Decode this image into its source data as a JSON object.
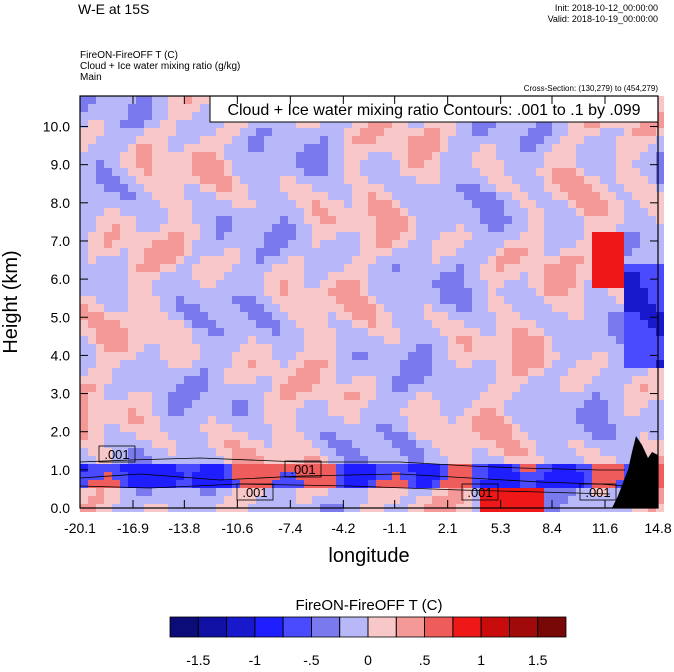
{
  "chart_data": {
    "type": "contour",
    "title": "W-E at 15S",
    "init": "Init: 2018-10-12_00:00:00",
    "valid": "Valid: 2018-10-19_00:00:00",
    "field_names": [
      "FireON-FireOFF T   (C)",
      "Cloud + Ice water mixing ratio   (g/kg)",
      "Main"
    ],
    "cross_section": "Cross-Section: (130,279) to (454,279)",
    "contour_info": "Cloud + Ice water mixing ratio Contours: .001 to .1 by .099",
    "contour_labels": [
      ".001",
      ".001",
      ".001",
      ".001",
      ".001"
    ],
    "xlabel": "longitude",
    "ylabel": "Height (km)",
    "xlim": [
      -20.1,
      14.8
    ],
    "xticks": [
      -20.1,
      -16.9,
      -13.8,
      -10.6,
      -7.4,
      -4.2,
      -1.1,
      2.1,
      5.3,
      8.4,
      11.6,
      14.8
    ],
    "ylim": [
      0,
      10.8
    ],
    "yticks": [
      {
        "value": 0,
        "label": "0.0"
      },
      {
        "value": 1,
        "label": "1.0"
      },
      {
        "value": 2,
        "label": "2.0"
      },
      {
        "value": 3,
        "label": "3.0"
      },
      {
        "value": 4,
        "label": "4.0"
      },
      {
        "value": 5,
        "label": "5.0"
      },
      {
        "value": 6,
        "label": "6.0"
      },
      {
        "value": 7,
        "label": "7.0"
      },
      {
        "value": 8,
        "label": "8.0"
      },
      {
        "value": 9,
        "label": "9.0"
      },
      {
        "value": 10,
        "label": "10.0"
      }
    ],
    "colorbar": {
      "title": "FireON-FireOFF T  (C)",
      "levels": [
        -1.5,
        -1.25,
        -1,
        -0.75,
        -0.5,
        -0.25,
        0,
        0.25,
        0.5,
        0.75,
        1,
        1.25,
        1.5
      ],
      "ticks": [
        {
          "value": -1.5,
          "label": "-1.5"
        },
        {
          "value": -1,
          "label": "-1"
        },
        {
          "value": -0.5,
          "label": "-.5"
        },
        0,
        {
          "value": 0.5,
          "label": ".5"
        },
        1,
        1.5
      ],
      "colors": [
        "#0c0c78",
        "#1010a4",
        "#1818cc",
        "#1e1eff",
        "#4a4aff",
        "#7a7aee",
        "#b8b8f8",
        "#f8c8c8",
        "#f49898",
        "#ee5c5c",
        "#ee1818",
        "#c80c0c",
        "#a00a0a",
        "#780808"
      ]
    }
  }
}
